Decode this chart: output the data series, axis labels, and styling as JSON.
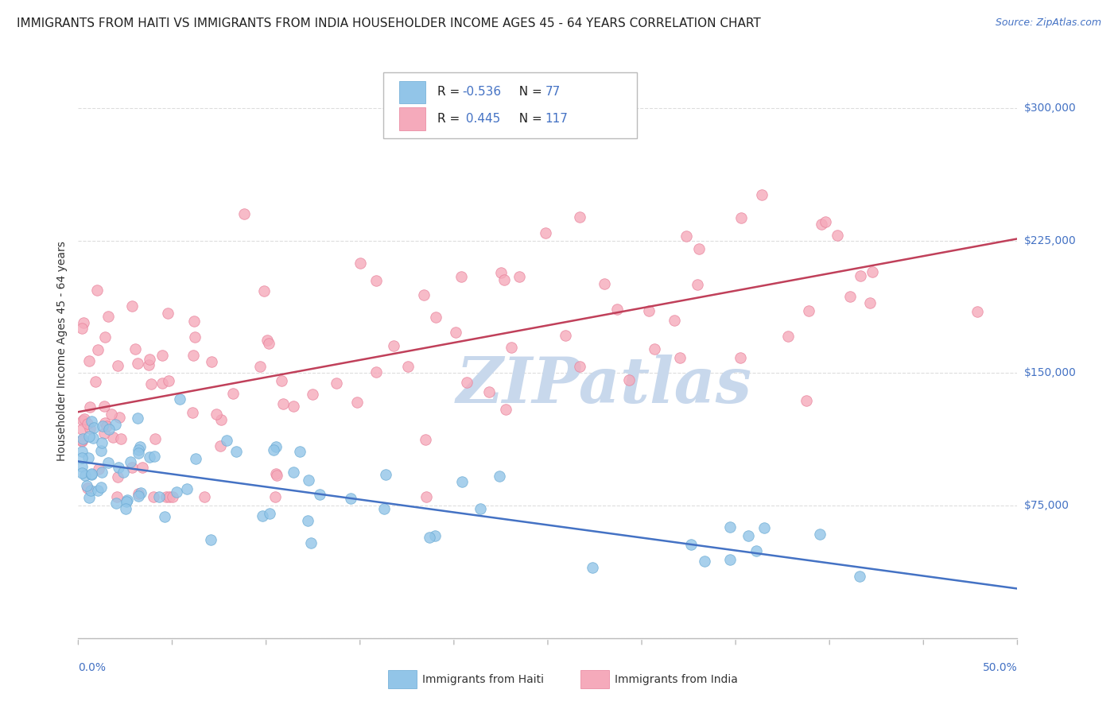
{
  "title": "IMMIGRANTS FROM HAITI VS IMMIGRANTS FROM INDIA HOUSEHOLDER INCOME AGES 45 - 64 YEARS CORRELATION CHART",
  "source": "Source: ZipAtlas.com",
  "ylabel": "Householder Income Ages 45 - 64 years",
  "xlim": [
    0.0,
    50.0
  ],
  "ylim": [
    0,
    325000
  ],
  "yticks": [
    0,
    75000,
    150000,
    225000,
    300000
  ],
  "haiti_color": "#92C5E8",
  "haiti_edge": "#6AAAD4",
  "india_color": "#F5AABB",
  "india_edge": "#E8809A",
  "haiti_line_color": "#4472C4",
  "india_line_color": "#C0405A",
  "haiti_R": -0.536,
  "haiti_N": 77,
  "india_R": 0.445,
  "india_N": 117,
  "haiti_line_y0": 100000,
  "haiti_line_y1": 28000,
  "india_line_y0": 128000,
  "india_line_y1": 226000,
  "watermark_text": "ZIPatlas",
  "watermark_color": "#C8D8EC",
  "background_color": "#FFFFFF",
  "grid_color": "#DDDDDD",
  "title_fontsize": 11,
  "source_fontsize": 9,
  "ylabel_fontsize": 10,
  "legend_fontsize": 11,
  "tick_color": "#4472C4",
  "tick_fontsize": 10,
  "legend_R_color": "#4472C4",
  "legend_N_color": "#4472C4",
  "legend_text_color": "#222222"
}
